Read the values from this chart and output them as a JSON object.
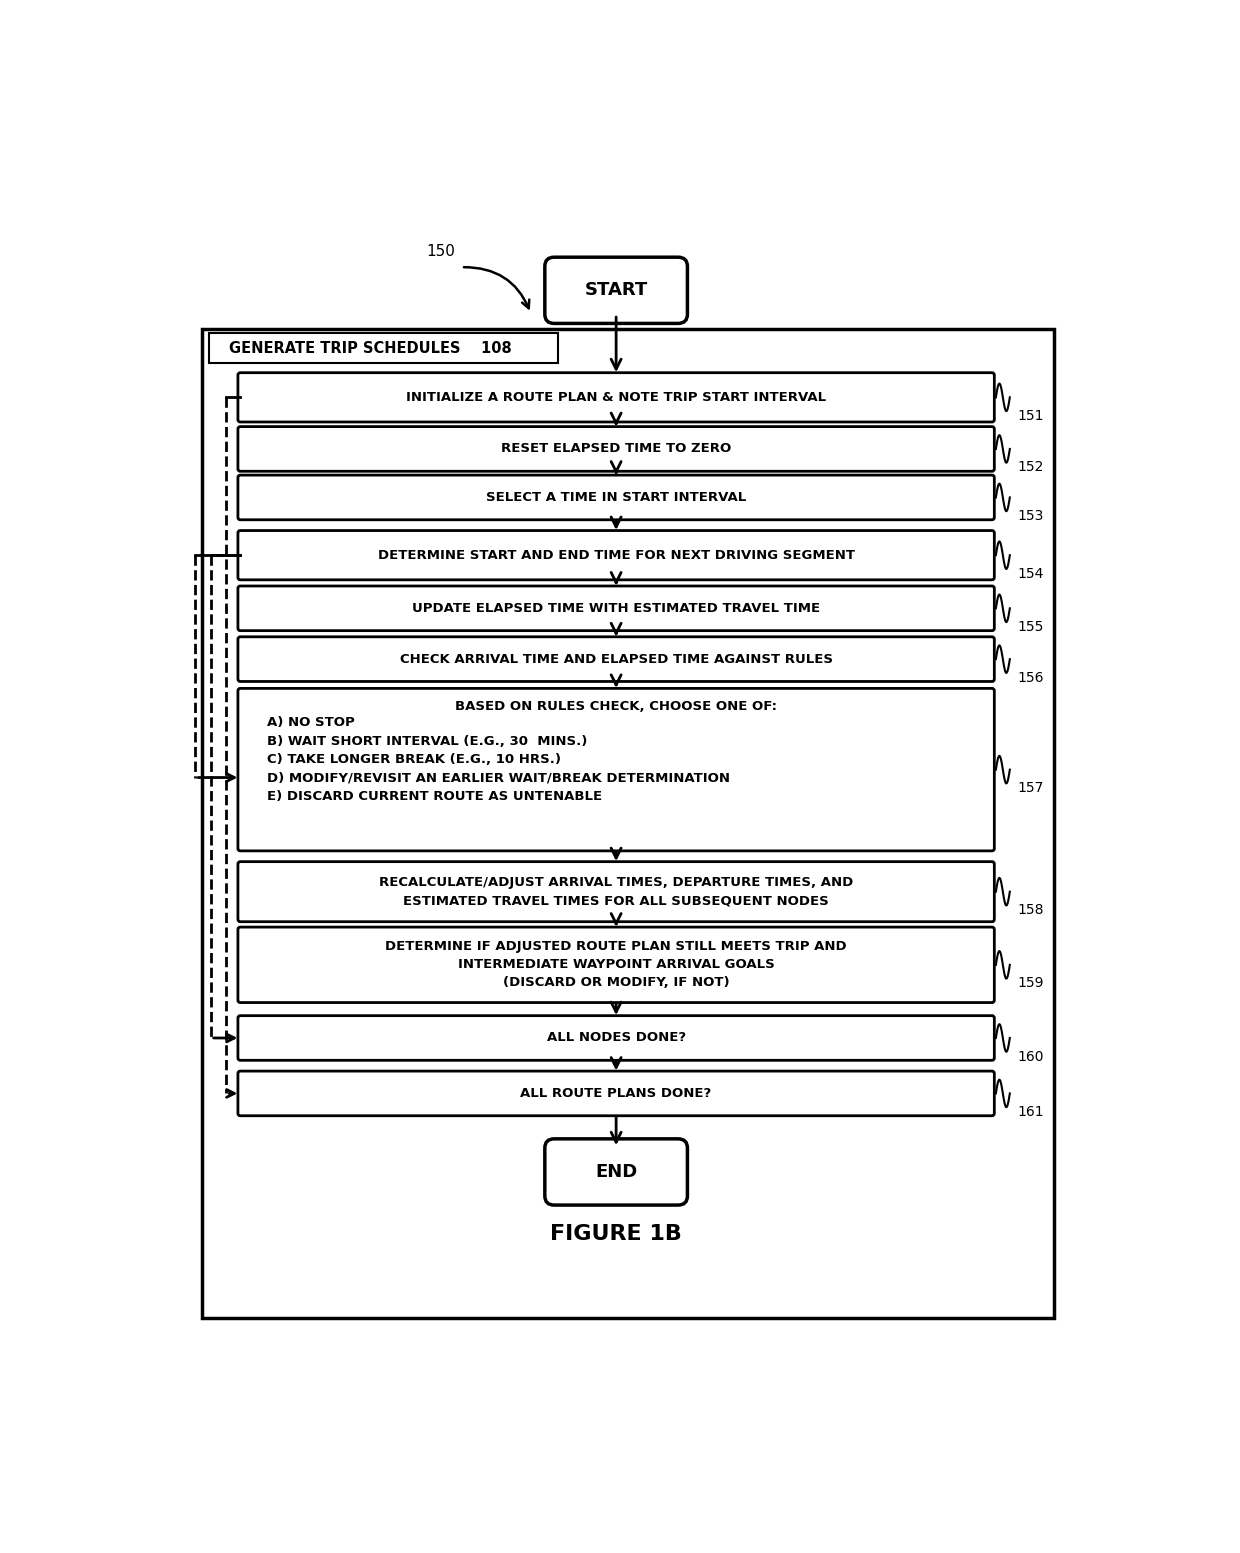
{
  "title": "FIGURE 1B",
  "bg_color": "#ffffff",
  "fig_label": "150",
  "boxes": [
    {
      "id": 151,
      "text": "INITIALIZE A ROUTE PLAN & NOTE TRIP START INTERVAL",
      "lines": 1
    },
    {
      "id": 152,
      "text": "RESET ELAPSED TIME TO ZERO",
      "lines": 1
    },
    {
      "id": 153,
      "text": "SELECT A TIME IN START INTERVAL",
      "lines": 1
    },
    {
      "id": 154,
      "text": "DETERMINE START AND END TIME FOR NEXT DRIVING SEGMENT",
      "lines": 1
    },
    {
      "id": 155,
      "text": "UPDATE ELAPSED TIME WITH ESTIMATED TRAVEL TIME",
      "lines": 1
    },
    {
      "id": 156,
      "text": "CHECK ARRIVAL TIME AND ELAPSED TIME AGAINST RULES",
      "lines": 1
    },
    {
      "id": 157,
      "text": "BASED ON RULES CHECK, CHOOSE ONE OF:\n\nA) NO STOP\nB) WAIT SHORT INTERVAL (E.G., 30  MINS.)\nC) TAKE LONGER BREAK (E.G., 10 HRS.)\nD) MODIFY/REVISIT AN EARLIER WAIT/BREAK DETERMINATION\nE) DISCARD CURRENT ROUTE AS UNTENABLE",
      "lines": 7,
      "align": "left"
    },
    {
      "id": 158,
      "text": "RECALCULATE/ADJUST ARRIVAL TIMES, DEPARTURE TIMES, AND\nESTIMATED TRAVEL TIMES FOR ALL SUBSEQUENT NODES",
      "lines": 2
    },
    {
      "id": 159,
      "text": "DETERMINE IF ADJUSTED ROUTE PLAN STILL MEETS TRIP AND\nINTERMEDIATE WAYPOINT ARRIVAL GOALS\n(DISCARD OR MODIFY, IF NOT)",
      "lines": 3
    },
    {
      "id": 160,
      "text": "ALL NODES DONE?",
      "lines": 1
    },
    {
      "id": 161,
      "text": "ALL ROUTE PLANS DONE?",
      "lines": 1
    }
  ],
  "header_label": "GENERATE TRIP SCHEDULES    108"
}
